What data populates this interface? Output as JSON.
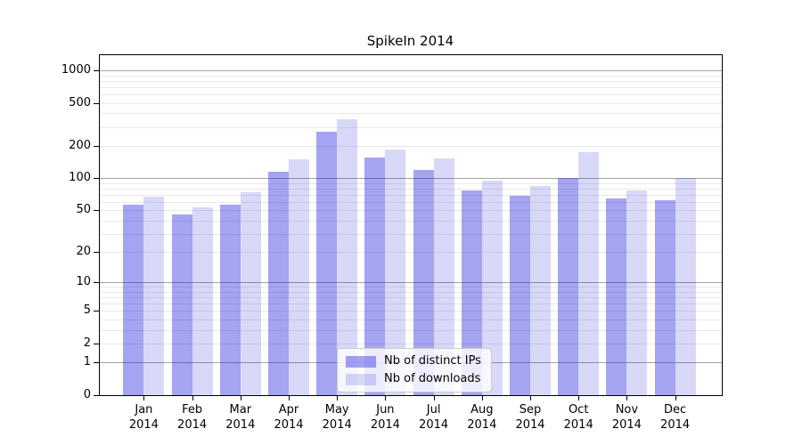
{
  "chart_data": {
    "type": "bar",
    "title": "SpikeIn 2014",
    "categories": [
      "Jan",
      "Feb",
      "Mar",
      "Apr",
      "May",
      "Jun",
      "Jul",
      "Aug",
      "Sep",
      "Oct",
      "Nov",
      "Dec"
    ],
    "x_year_line": "2014",
    "series": [
      {
        "name": "Nb of distinct IPs",
        "color": "rgba(15,15,220,0.38)",
        "values": [
          57,
          46,
          57,
          115,
          268,
          156,
          119,
          77,
          69,
          100,
          65,
          62
        ]
      },
      {
        "name": "Nb of downloads",
        "color": "rgba(15,15,220,0.16)",
        "values": [
          67,
          53,
          74,
          150,
          355,
          184,
          152,
          95,
          84,
          175,
          77,
          100
        ]
      }
    ],
    "yscale": "symlog-like: position proportional to log10(1+y), includes 0",
    "y_ticks": [
      0,
      1,
      2,
      5,
      10,
      20,
      50,
      100,
      200,
      500,
      1000
    ],
    "y_major_gridlines": [
      1,
      10,
      100,
      1000
    ],
    "y_minor_subs": [
      2,
      3,
      4,
      5,
      6,
      7,
      8,
      9
    ],
    "ylim": [
      0,
      1380
    ],
    "xlabel": "",
    "ylabel": "",
    "grid": true,
    "legend_position": "lower center",
    "colors": {
      "major_grid": "#a3a3a3",
      "minor_grid": "#e9e9e9",
      "spine": "#000000",
      "background": "#ffffff"
    }
  }
}
